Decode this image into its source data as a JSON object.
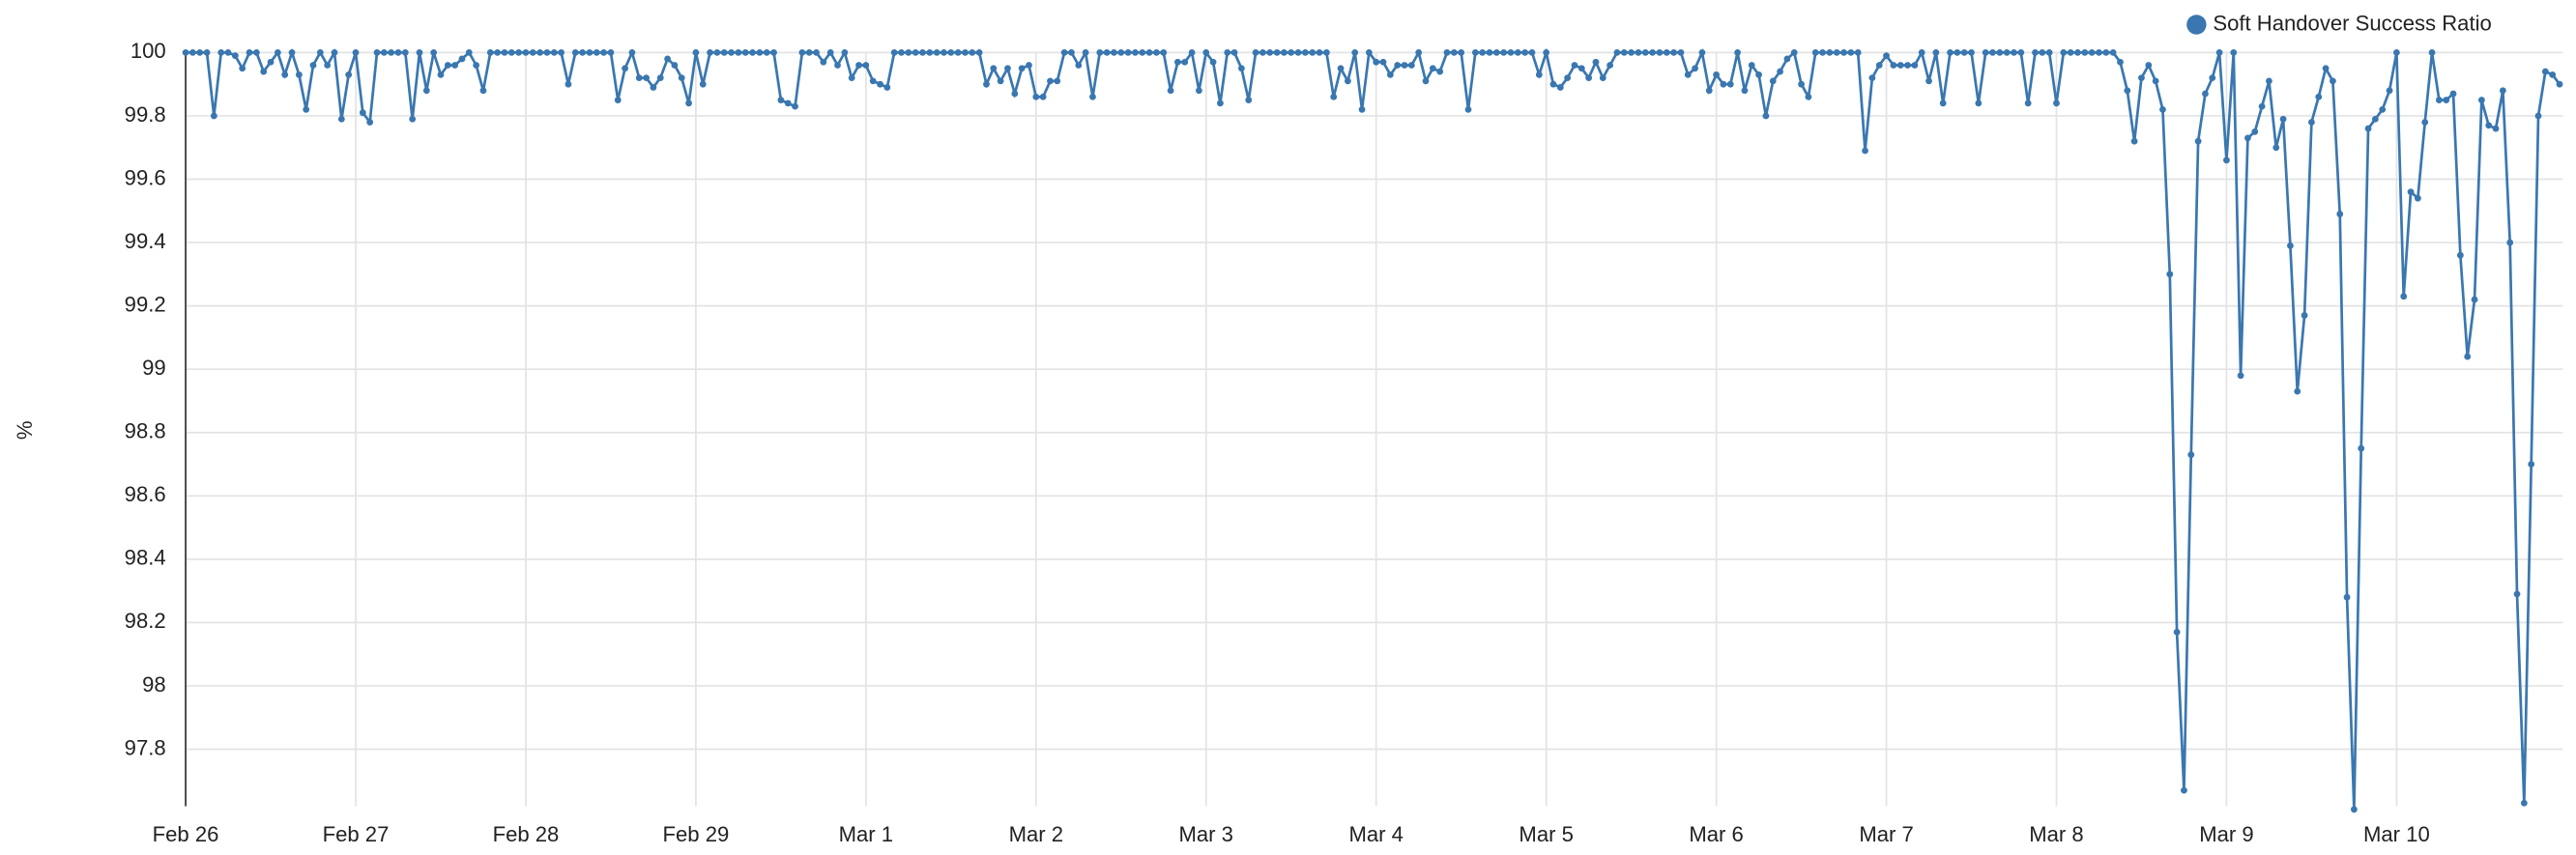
{
  "chart_data": {
    "type": "line",
    "y_label": "%",
    "x": [
      0,
      1,
      2,
      3,
      4,
      5,
      6,
      7,
      8,
      9,
      10,
      11,
      12,
      13,
      14,
      15,
      16,
      17,
      18,
      19,
      20,
      21,
      22,
      23,
      24,
      25,
      26,
      27,
      28,
      29,
      30,
      31,
      32,
      33,
      34,
      35,
      36,
      37,
      38,
      39,
      40,
      41,
      42,
      43,
      44,
      45,
      46,
      47,
      48,
      49,
      50,
      51,
      52,
      53,
      54,
      55,
      56,
      57,
      58,
      59,
      60,
      61,
      62,
      63,
      64,
      65,
      66,
      67,
      68,
      69,
      70,
      71,
      72,
      73,
      74,
      75,
      76,
      77,
      78,
      79,
      80,
      81,
      82,
      83,
      84,
      85,
      86,
      87,
      88,
      89,
      90,
      91,
      92,
      93,
      94,
      95,
      96,
      97,
      98,
      99,
      100,
      101,
      102,
      103,
      104,
      105,
      106,
      107,
      108,
      109,
      110,
      111,
      112,
      113,
      114,
      115,
      116,
      117,
      118,
      119,
      120,
      121,
      122,
      123,
      124,
      125,
      126,
      127,
      128,
      129,
      130,
      131,
      132,
      133,
      134,
      135,
      136,
      137,
      138,
      139,
      140,
      141,
      142,
      143,
      144,
      145,
      146,
      147,
      148,
      149,
      150,
      151,
      152,
      153,
      154,
      155,
      156,
      157,
      158,
      159,
      160,
      161,
      162,
      163,
      164,
      165,
      166,
      167,
      168,
      169,
      170,
      171,
      172,
      173,
      174,
      175,
      176,
      177,
      178,
      179,
      180,
      181,
      182,
      183,
      184,
      185,
      186,
      187,
      188,
      189,
      190,
      191,
      192,
      193,
      194,
      195,
      196,
      197,
      198,
      199,
      200,
      201,
      202,
      203,
      204,
      205,
      206,
      207,
      208,
      209,
      210,
      211,
      212,
      213,
      214,
      215,
      216,
      217,
      218,
      219,
      220,
      221,
      222,
      223,
      224,
      225,
      226,
      227,
      228,
      229,
      230,
      231,
      232,
      233,
      234,
      235,
      236,
      237,
      238,
      239,
      240,
      241,
      242,
      243,
      244,
      245,
      246,
      247,
      248,
      249,
      250,
      251,
      252,
      253,
      254,
      255,
      256,
      257,
      258,
      259,
      260,
      261,
      262,
      263,
      264,
      265,
      266,
      267,
      268,
      269,
      270,
      271,
      272,
      273,
      274,
      275,
      276,
      277,
      278,
      279,
      280,
      281,
      282,
      283,
      284,
      285,
      286,
      287,
      288,
      289,
      290,
      291,
      292,
      293,
      294,
      295,
      296,
      297,
      298,
      299,
      300,
      301,
      302,
      303,
      304,
      305,
      306,
      307,
      308,
      309,
      310,
      311,
      312,
      313,
      314,
      315,
      316,
      317,
      318,
      319,
      320,
      321,
      322,
      323,
      324,
      325,
      326,
      327,
      328,
      329,
      330,
      331,
      332,
      333,
      334,
      335
    ],
    "series": [
      {
        "name": "Soft Handover Success Ratio",
        "color": "#3a77b0",
        "values": [
          100,
          100,
          100,
          100,
          99.8,
          100,
          100,
          99.99,
          99.95,
          100,
          100,
          99.94,
          99.97,
          100,
          99.93,
          100,
          99.93,
          99.82,
          99.96,
          100,
          99.96,
          100,
          99.79,
          99.93,
          100,
          99.81,
          99.78,
          100,
          100,
          100,
          100,
          100,
          99.79,
          100,
          99.88,
          100,
          99.93,
          99.96,
          99.96,
          99.98,
          100,
          99.96,
          99.88,
          100,
          100,
          100,
          100,
          100,
          100,
          100,
          100,
          100,
          100,
          100,
          99.9,
          100,
          100,
          100,
          100,
          100,
          100,
          99.85,
          99.95,
          100,
          99.92,
          99.92,
          99.89,
          99.92,
          99.98,
          99.96,
          99.92,
          99.84,
          100,
          99.9,
          100,
          100,
          100,
          100,
          100,
          100,
          100,
          100,
          100,
          100,
          99.85,
          99.84,
          99.83,
          100,
          100,
          100,
          99.97,
          100,
          99.96,
          100,
          99.92,
          99.96,
          99.96,
          99.91,
          99.9,
          99.89,
          100,
          100,
          100,
          100,
          100,
          100,
          100,
          100,
          100,
          100,
          100,
          100,
          100,
          99.9,
          99.95,
          99.91,
          99.95,
          99.87,
          99.95,
          99.96,
          99.86,
          99.86,
          99.91,
          99.91,
          100,
          100,
          99.96,
          100,
          99.86,
          100,
          100,
          100,
          100,
          100,
          100,
          100,
          100,
          100,
          100,
          99.88,
          99.97,
          99.97,
          100,
          99.88,
          100,
          99.97,
          99.84,
          100,
          100,
          99.95,
          99.85,
          100,
          100,
          100,
          100,
          100,
          100,
          100,
          100,
          100,
          100,
          100,
          99.86,
          99.95,
          99.91,
          100,
          99.82,
          100,
          99.97,
          99.97,
          99.93,
          99.96,
          99.96,
          99.96,
          100,
          99.91,
          99.95,
          99.94,
          100,
          100,
          100,
          99.82,
          100,
          100,
          100,
          100,
          100,
          100,
          100,
          100,
          100,
          99.93,
          100,
          99.9,
          99.89,
          99.92,
          99.96,
          99.95,
          99.92,
          99.97,
          99.92,
          99.96,
          100,
          100,
          100,
          100,
          100,
          100,
          100,
          100,
          100,
          100,
          99.93,
          99.95,
          100,
          99.88,
          99.93,
          99.9,
          99.9,
          100,
          99.88,
          99.96,
          99.93,
          99.8,
          99.91,
          99.94,
          99.98,
          100,
          99.9,
          99.86,
          100,
          100,
          100,
          100,
          100,
          100,
          100,
          99.69,
          99.92,
          99.96,
          99.99,
          99.96,
          99.96,
          99.96,
          99.96,
          100,
          99.91,
          100,
          99.84,
          100,
          100,
          100,
          100,
          99.84,
          100,
          100,
          100,
          100,
          100,
          100,
          99.84,
          100,
          100,
          100,
          99.84,
          100,
          100,
          100,
          100,
          100,
          100,
          100,
          100,
          99.97,
          99.88,
          99.72,
          99.92,
          99.96,
          99.91,
          99.82,
          99.3,
          98.17,
          97.67,
          98.73,
          99.72,
          99.87,
          99.92,
          100,
          99.66,
          100,
          98.98,
          99.73,
          99.75,
          99.83,
          99.91,
          99.7,
          99.79,
          99.39,
          98.93,
          99.17,
          99.78,
          99.86,
          99.95,
          99.91,
          99.49,
          98.28,
          97.61,
          98.75,
          99.76,
          99.79,
          99.82,
          99.88,
          100,
          99.23,
          99.56,
          99.54,
          99.78,
          100,
          99.85,
          99.85,
          99.87,
          99.36,
          99.04,
          99.22,
          99.85,
          99.77,
          99.76,
          99.88,
          99.4,
          98.29,
          97.63,
          98.7,
          99.8,
          99.94,
          99.93,
          99.9
        ]
      }
    ],
    "xlim": [
      0,
      335
    ],
    "xticks": [
      {
        "value": 0,
        "label": "Feb 26"
      },
      {
        "value": 24,
        "label": "Feb 27"
      },
      {
        "value": 48,
        "label": "Feb 28"
      },
      {
        "value": 72,
        "label": "Feb 29"
      },
      {
        "value": 96,
        "label": "Mar 1"
      },
      {
        "value": 120,
        "label": "Mar 2"
      },
      {
        "value": 144,
        "label": "Mar 3"
      },
      {
        "value": 168,
        "label": "Mar 4"
      },
      {
        "value": 192,
        "label": "Mar 5"
      },
      {
        "value": 216,
        "label": "Mar 6"
      },
      {
        "value": 240,
        "label": "Mar 7"
      },
      {
        "value": 264,
        "label": "Mar 8"
      },
      {
        "value": 288,
        "label": "Mar 9"
      },
      {
        "value": 312,
        "label": "Mar 10"
      }
    ],
    "ylim": [
      97.62,
      100
    ],
    "yticks": [
      97.8,
      98,
      98.2,
      98.4,
      98.6,
      98.8,
      99,
      99.2,
      99.4,
      99.6,
      99.8,
      100
    ],
    "grid": true,
    "legend": "top-right"
  }
}
